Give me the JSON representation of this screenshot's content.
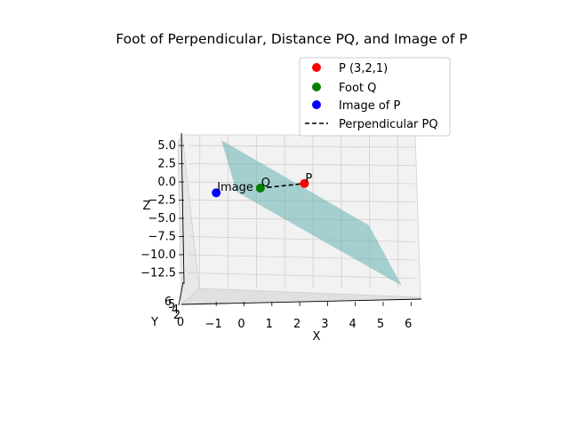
{
  "chart_data": {
    "type": "scatter",
    "projection": "3d",
    "title": "Foot of Perpendicular, Distance PQ, and Image of P",
    "xlabel": "X",
    "ylabel": "Y",
    "zlabel": "Z",
    "x_ticks": [
      "−1",
      "0",
      "1",
      "2",
      "3",
      "4",
      "5",
      "6"
    ],
    "y_ticks": [
      "0",
      "2",
      "4",
      "5",
      "6"
    ],
    "z_ticks": [
      "5.0",
      "2.5",
      "0.0",
      "−2.5",
      "−5.0",
      "−7.5",
      "−10.0",
      "−12.5"
    ],
    "xlim": [
      -1.5,
      6.5
    ],
    "zlim": [
      -14,
      6
    ],
    "grid": true,
    "legend_position": "upper-right",
    "points": [
      {
        "key": "P",
        "legend": "P (3,2,1)",
        "label": "P",
        "color": "#ff0000",
        "x": 3,
        "y": 2,
        "z": 1
      },
      {
        "key": "Q",
        "legend": "Foot Q",
        "label": "Q",
        "color": "#008000",
        "x": 1,
        "y": 1,
        "z": 0
      },
      {
        "key": "Image",
        "legend": "Image of P",
        "label": "Image",
        "color": "#0000ff",
        "x": -1,
        "y": 0,
        "z": -1
      }
    ],
    "segment": {
      "legend": "Perpendicular PQ",
      "from": "Q",
      "to": "P",
      "style": "dashed",
      "color": "#000000"
    },
    "plane": {
      "color": "#66b3b3",
      "alpha": 0.55
    }
  }
}
